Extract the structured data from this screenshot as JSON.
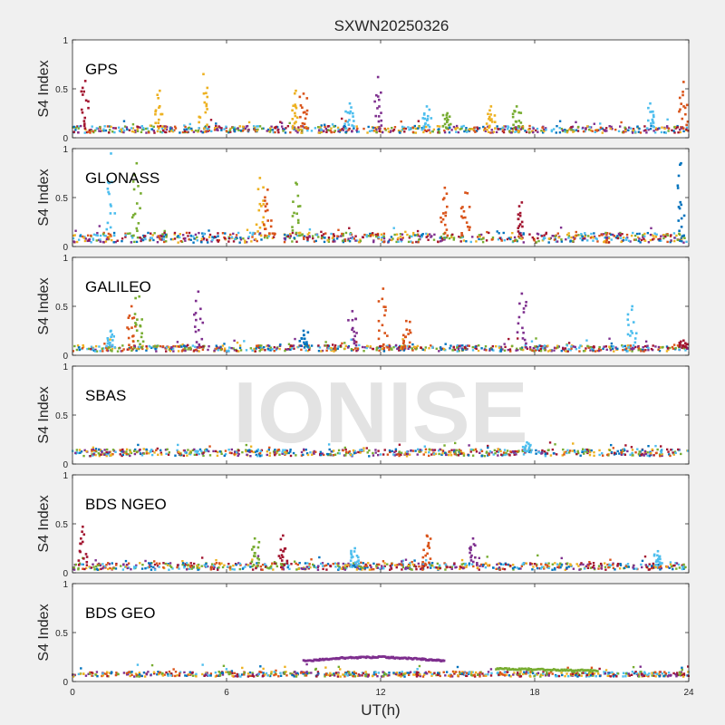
{
  "figure": {
    "title": "SXWN20250326",
    "watermark": "IONISE",
    "xlabel": "UT(h)",
    "background_color": "#f0f0f0",
    "axes_background_color": "#ffffff"
  },
  "chart_data": {
    "type": "scatter",
    "title": "SXWN20250326",
    "xlabel": "UT(h)",
    "ylabel": "S4 Index",
    "xlim": [
      0,
      24
    ],
    "ylim": [
      0,
      1
    ],
    "xticks": [
      0,
      6,
      12,
      18,
      24
    ],
    "yticks": [
      0,
      0.5,
      1
    ],
    "grid": false,
    "legend": "none",
    "series_colors": [
      "#0072BD",
      "#D95319",
      "#EDB120",
      "#7E2F8E",
      "#77AC30",
      "#4DBEEE",
      "#A2142F"
    ],
    "panels": [
      {
        "label": "GPS",
        "baseline": [
          0.05,
          0.12
        ],
        "spikes": [
          [
            0.5,
            0.58,
            "#A2142F"
          ],
          [
            3.4,
            0.48,
            "#EDB120"
          ],
          [
            5.1,
            0.65,
            "#EDB120"
          ],
          [
            8.7,
            0.48,
            "#EDB120"
          ],
          [
            9.0,
            0.45,
            "#D95319"
          ],
          [
            10.8,
            0.35,
            "#4DBEEE"
          ],
          [
            11.9,
            0.62,
            "#7E2F8E"
          ],
          [
            13.8,
            0.32,
            "#4DBEEE"
          ],
          [
            14.6,
            0.25,
            "#77AC30"
          ],
          [
            16.3,
            0.32,
            "#EDB120"
          ],
          [
            17.3,
            0.32,
            "#77AC30"
          ],
          [
            22.5,
            0.35,
            "#4DBEEE"
          ],
          [
            23.8,
            0.57,
            "#D95319"
          ]
        ]
      },
      {
        "label": "GLONASS",
        "baseline": [
          0.04,
          0.14
        ],
        "spikes": [
          [
            1.5,
            0.95,
            "#4DBEEE"
          ],
          [
            2.5,
            0.85,
            "#77AC30"
          ],
          [
            7.3,
            0.7,
            "#EDB120"
          ],
          [
            7.6,
            0.58,
            "#D95319"
          ],
          [
            8.7,
            0.65,
            "#77AC30"
          ],
          [
            14.5,
            0.6,
            "#D95319"
          ],
          [
            15.3,
            0.55,
            "#D95319"
          ],
          [
            17.5,
            0.45,
            "#A2142F"
          ],
          [
            23.7,
            0.85,
            "#0072BD"
          ]
        ]
      },
      {
        "label": "GALILEO",
        "baseline": [
          0.04,
          0.1
        ],
        "spikes": [
          [
            1.5,
            0.25,
            "#4DBEEE"
          ],
          [
            2.3,
            0.5,
            "#D95319"
          ],
          [
            2.6,
            0.6,
            "#77AC30"
          ],
          [
            4.9,
            0.65,
            "#7E2F8E"
          ],
          [
            9.0,
            0.25,
            "#0072BD"
          ],
          [
            10.9,
            0.45,
            "#7E2F8E"
          ],
          [
            12.1,
            0.68,
            "#D95319"
          ],
          [
            13.0,
            0.35,
            "#D95319"
          ],
          [
            17.5,
            0.63,
            "#7E2F8E"
          ],
          [
            21.8,
            0.5,
            "#4DBEEE"
          ],
          [
            23.8,
            0.15,
            "#A2142F"
          ]
        ]
      },
      {
        "label": "SBAS",
        "baseline": [
          0.08,
          0.15
        ],
        "spikes": [
          [
            17.7,
            0.22,
            "#4DBEEE"
          ]
        ]
      },
      {
        "label": "BDS NGEO",
        "baseline": [
          0.03,
          0.1
        ],
        "spikes": [
          [
            0.4,
            0.47,
            "#A2142F"
          ],
          [
            7.1,
            0.35,
            "#77AC30"
          ],
          [
            8.2,
            0.38,
            "#A2142F"
          ],
          [
            11.0,
            0.25,
            "#4DBEEE"
          ],
          [
            13.8,
            0.38,
            "#D95319"
          ],
          [
            15.6,
            0.35,
            "#7E2F8E"
          ],
          [
            22.8,
            0.22,
            "#4DBEEE"
          ]
        ]
      },
      {
        "label": "BDS GEO",
        "baseline": [
          0.05,
          0.1
        ],
        "spikes": [],
        "arcs": [
          {
            "color": "#7E2F8E",
            "x": [
              9.0,
              10.5,
              12.0,
              13.5,
              14.5
            ],
            "y": [
              0.21,
              0.24,
              0.25,
              0.23,
              0.21
            ]
          },
          {
            "color": "#77AC30",
            "x": [
              16.5,
              18.5,
              20.5
            ],
            "y": [
              0.13,
              0.12,
              0.11
            ]
          }
        ]
      }
    ]
  }
}
